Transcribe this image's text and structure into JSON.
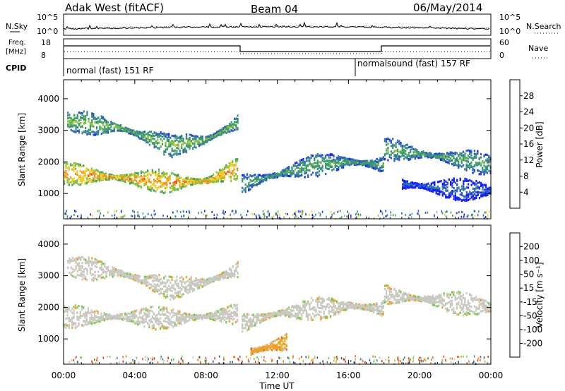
{
  "header": {
    "station": "Adak West (fitACF)",
    "beam": "Beam 04",
    "date": "06/May/2014"
  },
  "noise_panel": {
    "left_label": "N.Sky",
    "right_label": "N.Search",
    "left_ticks": [
      "10^5",
      "10^0"
    ],
    "right_ticks": [
      "10^5",
      "10^0"
    ]
  },
  "freq_panel": {
    "left_label_1": "Freq.",
    "left_label_2": "[MHz]",
    "right_label": "Nave",
    "left_ticks": [
      "18",
      "8"
    ],
    "right_ticks": [
      "60",
      "0"
    ]
  },
  "cpid": {
    "label": "CPID",
    "segments": [
      "normal (fast) 151 RF",
      "normalsound (fast) 157 RF"
    ]
  },
  "xaxis": {
    "label": "Time UT",
    "ticks": [
      "00:00",
      "04:00",
      "08:00",
      "12:00",
      "16:00",
      "20:00",
      "00:00"
    ]
  },
  "power_panel": {
    "ylabel": "Slant Range [km]",
    "yticks": [
      "4000",
      "3000",
      "2000",
      "1000"
    ],
    "colorbar_label": "Power [dB]",
    "colorbar_ticks": [
      "28",
      "24",
      "20",
      "16",
      "12",
      "8",
      "4"
    ]
  },
  "velocity_panel": {
    "ylabel": "Slant Range [km]",
    "yticks": [
      "4000",
      "3000",
      "2000",
      "1000"
    ],
    "colorbar_label": "Velocity [m s⁻¹]",
    "colorbar_ticks": [
      "200",
      "100",
      "50",
      "15",
      "-15",
      "-50",
      "-100",
      "-200"
    ]
  },
  "chart_data": [
    {
      "type": "heatmap",
      "title": "Power",
      "xlabel": "Time UT",
      "ylabel": "Slant Range [km]",
      "xlim_hours": [
        0,
        24
      ],
      "ylim": [
        200,
        4600
      ],
      "colorbar_range_db": [
        0,
        32
      ],
      "bands": [
        {
          "start_h": 0.2,
          "end_h": 9.8,
          "center_km": [
            3300,
            3100,
            2500,
            2700,
            3250
          ],
          "center_at_h": [
            0.2,
            3,
            6,
            8,
            9.8
          ],
          "power_db": 16
        },
        {
          "start_h": 0.0,
          "end_h": 9.8,
          "center_km": [
            1650,
            1500,
            1350,
            1400,
            1800
          ],
          "center_at_h": [
            0,
            3,
            6,
            8,
            9.8
          ],
          "power_db": 24
        },
        {
          "start_h": 10.0,
          "end_h": 18.0,
          "center_km": [
            1300,
            1600,
            1900,
            2000,
            1900
          ],
          "center_at_h": [
            10,
            12,
            14,
            16,
            18
          ],
          "power_db": 14
        },
        {
          "start_h": 18.0,
          "end_h": 24.0,
          "center_km": [
            2400,
            2250,
            2100,
            1900
          ],
          "center_at_h": [
            18,
            20,
            22,
            24
          ],
          "power_db": 14
        },
        {
          "start_h": 19.0,
          "end_h": 24.0,
          "center_km": [
            1300,
            1150,
            1100
          ],
          "center_at_h": [
            19,
            21.5,
            24
          ],
          "power_db": 8
        }
      ]
    },
    {
      "type": "heatmap",
      "title": "Velocity",
      "xlabel": "Time UT",
      "ylabel": "Slant Range [km]",
      "xlim_hours": [
        0,
        24
      ],
      "ylim": [
        200,
        4600
      ],
      "colorbar_range_ms": [
        -250,
        250
      ],
      "bands": [
        {
          "start_h": 0.2,
          "end_h": 9.8,
          "center_km": [
            3300,
            3100,
            2600,
            2800,
            3200
          ],
          "center_at_h": [
            0.2,
            3,
            6,
            8,
            9.8
          ],
          "velocity_ms": 0
        },
        {
          "start_h": 0.0,
          "end_h": 9.8,
          "center_km": [
            1700,
            1700,
            1650,
            1700,
            1800
          ],
          "center_at_h": [
            0,
            3,
            6,
            8,
            9.8
          ],
          "velocity_ms": 0
        },
        {
          "start_h": 10.0,
          "end_h": 18.0,
          "center_km": [
            1500,
            1800,
            1950,
            2050,
            1950
          ],
          "center_at_h": [
            10,
            12,
            14,
            16,
            18
          ],
          "velocity_ms": 0
        },
        {
          "start_h": 10.5,
          "end_h": 12.5,
          "center_km": [
            600,
            900
          ],
          "center_at_h": [
            10.5,
            12.5
          ],
          "velocity_ms": -70
        },
        {
          "start_h": 18.0,
          "end_h": 24.0,
          "center_km": [
            2400,
            2200,
            2000
          ],
          "center_at_h": [
            18,
            21,
            24
          ],
          "velocity_ms": 0
        }
      ]
    }
  ]
}
